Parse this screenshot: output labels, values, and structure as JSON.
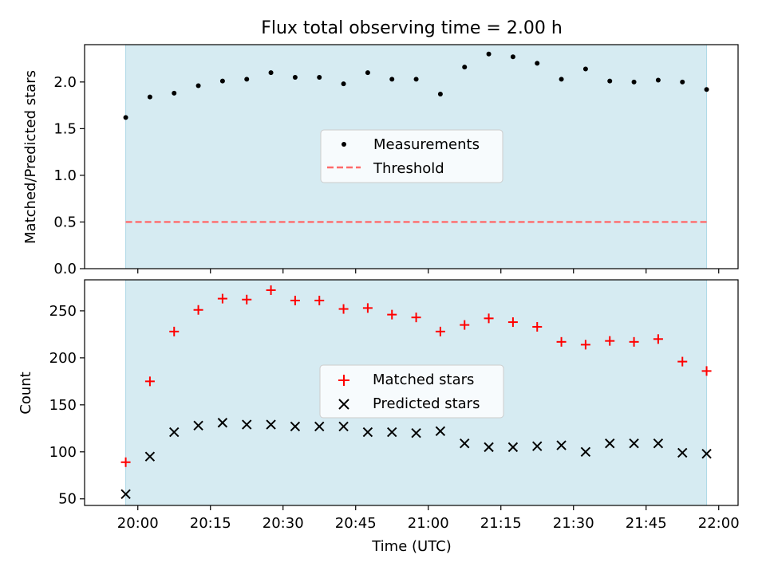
{
  "chart_data": [
    {
      "type": "scatter",
      "title": "Flux total observing time = 2.00 h",
      "xlabel": "",
      "ylabel": "Matched/Predicted stars",
      "ylim": [
        0.0,
        2.4
      ],
      "yticks": [
        "0.0",
        "0.5",
        "1.0",
        "1.5",
        "2.0"
      ],
      "xlim": [
        "19:49",
        "22:04"
      ],
      "observing_window": [
        "19:57:30",
        "21:57:30"
      ],
      "threshold": 0.5,
      "legend": {
        "placement": "center",
        "entries": [
          "Measurements",
          "Threshold"
        ]
      },
      "series": [
        {
          "name": "Measurements",
          "x": [
            "19:57:30",
            "20:02:30",
            "20:07:30",
            "20:12:30",
            "20:17:30",
            "20:22:30",
            "20:27:30",
            "20:32:30",
            "20:37:30",
            "20:42:30",
            "20:47:30",
            "20:52:30",
            "20:57:30",
            "21:02:30",
            "21:07:30",
            "21:12:30",
            "21:17:30",
            "21:22:30",
            "21:27:30",
            "21:32:30",
            "21:37:30",
            "21:42:30",
            "21:47:30",
            "21:52:30",
            "21:57:30"
          ],
          "values": [
            1.62,
            1.84,
            1.88,
            1.96,
            2.01,
            2.03,
            2.1,
            2.05,
            2.05,
            1.98,
            2.1,
            2.03,
            2.03,
            1.87,
            2.16,
            2.3,
            2.27,
            2.2,
            2.03,
            2.14,
            2.01,
            2.0,
            2.02,
            2.0,
            1.92
          ]
        },
        {
          "name": "Threshold",
          "x": [
            "19:57:30",
            "21:57:30"
          ],
          "values": [
            0.5,
            0.5
          ]
        }
      ],
      "colors": {
        "measurements": "#000000",
        "threshold": "#ff6b6b",
        "window": "#add8e6"
      }
    },
    {
      "type": "scatter",
      "title": "",
      "xlabel": "Time (UTC)",
      "ylabel": "Count",
      "ylim": [
        43,
        283
      ],
      "yticks": [
        "50",
        "100",
        "150",
        "200",
        "250"
      ],
      "xticks": [
        "20:00",
        "20:15",
        "20:30",
        "20:45",
        "21:00",
        "21:15",
        "21:30",
        "21:45",
        "22:00"
      ],
      "xlim": [
        "19:49",
        "22:04"
      ],
      "observing_window": [
        "19:57:30",
        "21:57:30"
      ],
      "legend": {
        "placement": "center",
        "entries": [
          "Matched stars",
          "Predicted stars"
        ]
      },
      "series": [
        {
          "name": "Matched stars",
          "x": [
            "19:57:30",
            "20:02:30",
            "20:07:30",
            "20:12:30",
            "20:17:30",
            "20:22:30",
            "20:27:30",
            "20:32:30",
            "20:37:30",
            "20:42:30",
            "20:47:30",
            "20:52:30",
            "20:57:30",
            "21:02:30",
            "21:07:30",
            "21:12:30",
            "21:17:30",
            "21:22:30",
            "21:27:30",
            "21:32:30",
            "21:37:30",
            "21:42:30",
            "21:47:30",
            "21:52:30",
            "21:57:30"
          ],
          "values": [
            89,
            175,
            228,
            251,
            263,
            262,
            272,
            261,
            261,
            252,
            253,
            246,
            243,
            228,
            235,
            242,
            238,
            233,
            217,
            214,
            218,
            217,
            220,
            196,
            186
          ]
        },
        {
          "name": "Predicted stars",
          "x": [
            "19:57:30",
            "20:02:30",
            "20:07:30",
            "20:12:30",
            "20:17:30",
            "20:22:30",
            "20:27:30",
            "20:32:30",
            "20:37:30",
            "20:42:30",
            "20:47:30",
            "20:52:30",
            "20:57:30",
            "21:02:30",
            "21:07:30",
            "21:12:30",
            "21:17:30",
            "21:22:30",
            "21:27:30",
            "21:32:30",
            "21:37:30",
            "21:42:30",
            "21:47:30",
            "21:52:30",
            "21:57:30"
          ],
          "values": [
            55,
            95,
            121,
            128,
            131,
            129,
            129,
            127,
            127,
            127,
            121,
            121,
            120,
            122,
            109,
            105,
            105,
            106,
            107,
            100,
            109,
            109,
            109,
            99,
            98
          ]
        }
      ],
      "colors": {
        "matched": "#ff0000",
        "predicted": "#000000",
        "window": "#add8e6"
      }
    }
  ]
}
